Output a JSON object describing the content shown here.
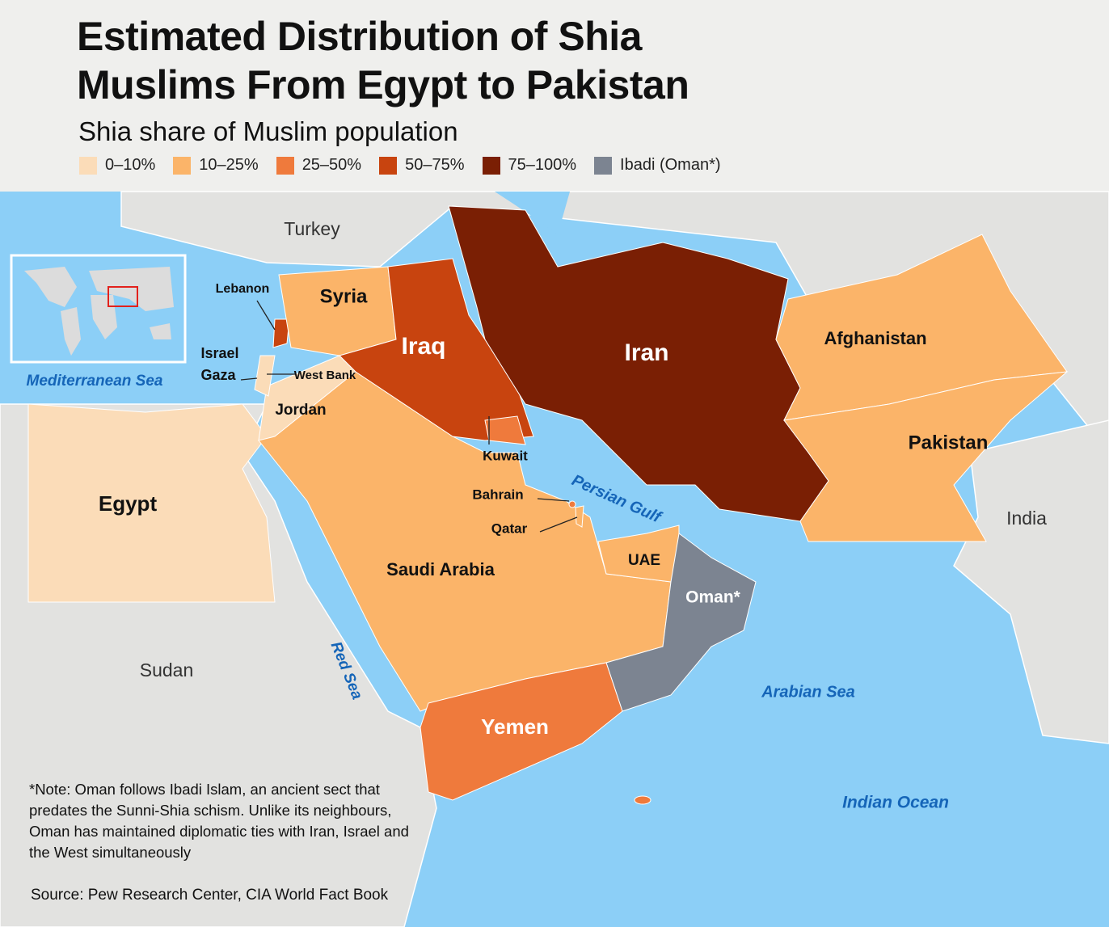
{
  "title": [
    "Estimated Distribution of Shia",
    "Muslims From Egypt to Pakistan"
  ],
  "subtitle": "Shia share of Muslim population",
  "legend": [
    {
      "label": "0–10%",
      "color": "#fbdcb8"
    },
    {
      "label": "10–25%",
      "color": "#fbb469"
    },
    {
      "label": "25–50%",
      "color": "#ef7a3c"
    },
    {
      "label": "50–75%",
      "color": "#c8440f"
    },
    {
      "label": "75–100%",
      "color": "#7a1f04"
    },
    {
      "label": "Ibadi (Oman*)",
      "color": "#7c8491"
    }
  ],
  "regions": [
    {
      "name": "Egypt",
      "color": "#fbdcb8"
    },
    {
      "name": "Saudi Arabia",
      "color": "#fbb469"
    },
    {
      "name": "Jordan",
      "color": "#fbdcb8"
    },
    {
      "name": "Israel",
      "color": "#fbdcb8"
    },
    {
      "name": "Gaza",
      "color": "#fbdcb8"
    },
    {
      "name": "West Bank",
      "color": "#fbdcb8"
    },
    {
      "name": "Lebanon",
      "color": "#c8440f"
    },
    {
      "name": "Syria",
      "color": "#fbb469"
    },
    {
      "name": "Iraq",
      "color": "#c8440f"
    },
    {
      "name": "Kuwait",
      "color": "#ef7a3c"
    },
    {
      "name": "Iran",
      "color": "#7a1f04"
    },
    {
      "name": "Afghanistan",
      "color": "#fbb469"
    },
    {
      "name": "Pakistan",
      "color": "#fbb469"
    },
    {
      "name": "Bahrain",
      "color": "#ef7a3c"
    },
    {
      "name": "Qatar",
      "color": "#fbb469"
    },
    {
      "name": "UAE",
      "color": "#fbb469"
    },
    {
      "name": "Oman*",
      "color": "#7c8491"
    },
    {
      "name": "Yemen",
      "color": "#ef7a3c"
    }
  ],
  "places": [
    "Turkey",
    "Sudan",
    "India"
  ],
  "seas": [
    "Mediterranean Sea",
    "Persian Gulf",
    "Red Sea",
    "Arabian Sea",
    "Indian Ocean"
  ],
  "note": "*Note: Oman follows Ibadi Islam, an ancient sect that predates the Sunni-Shia schism. Unlike its neighbours, Oman has maintained diplomatic ties with Iran, Israel and the West simultaneously",
  "source": "Source: Pew Research Center, CIA World Fact Book"
}
